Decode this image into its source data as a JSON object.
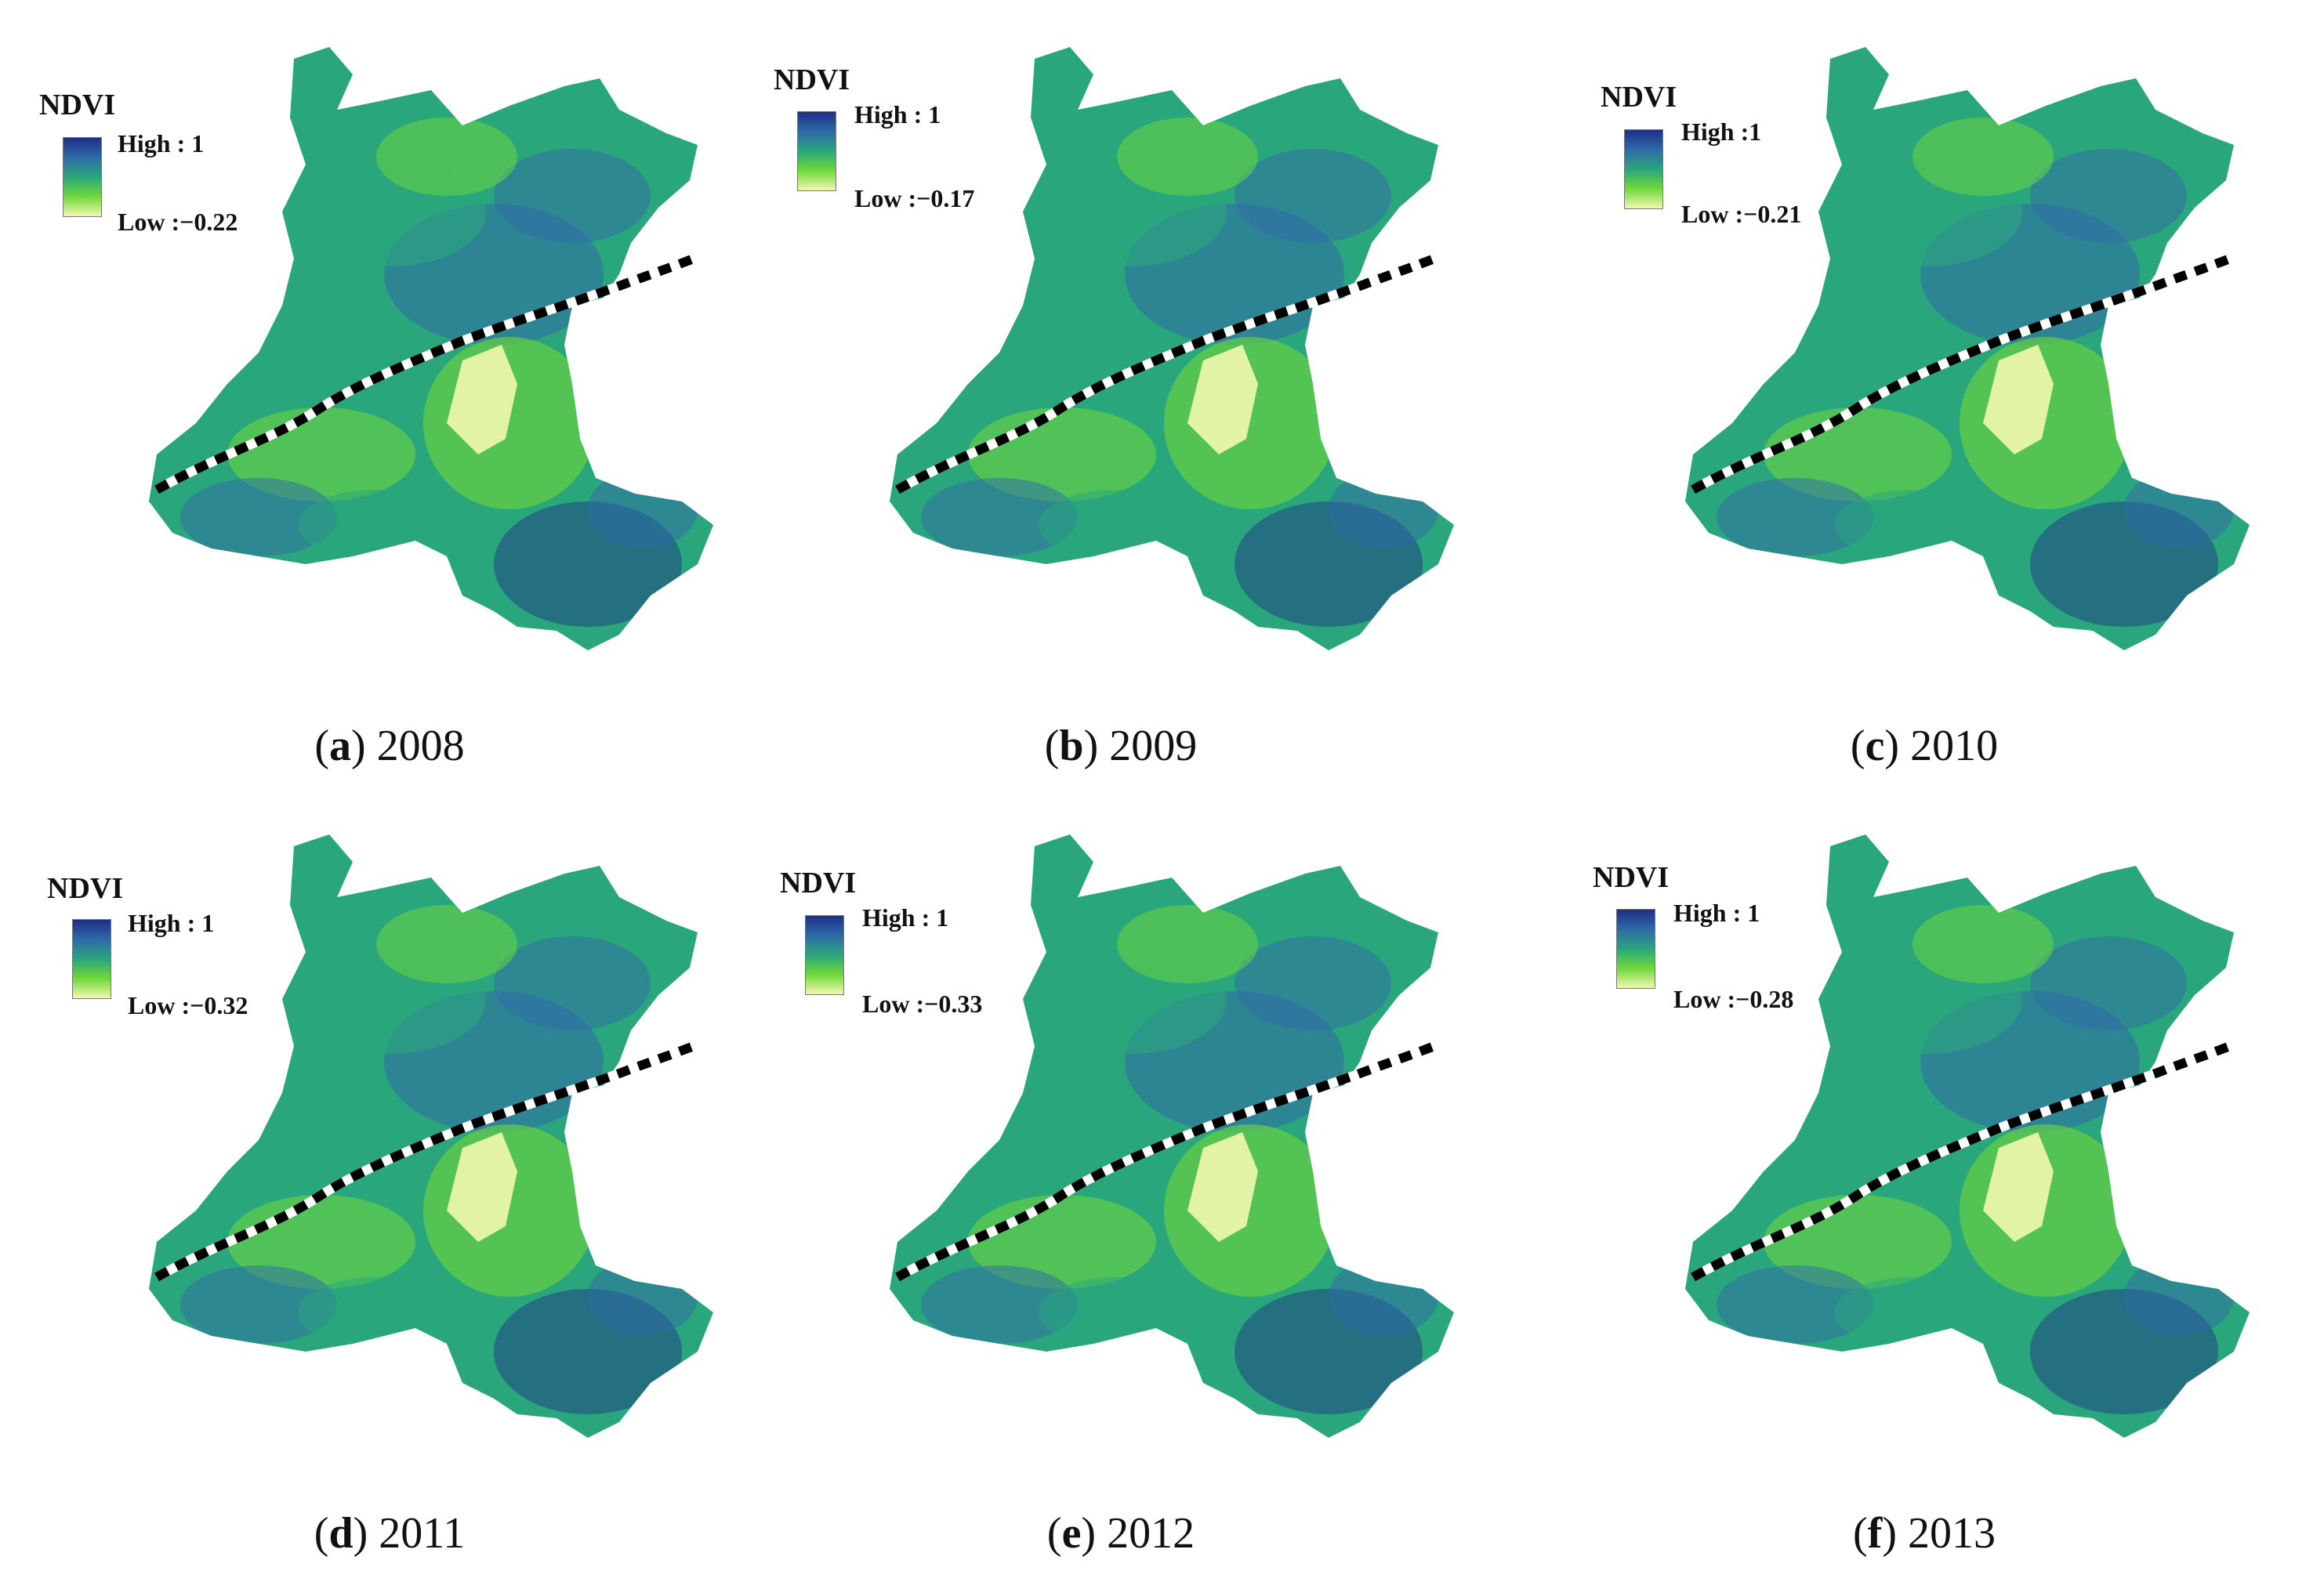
{
  "panels": [
    {
      "letter": "a",
      "year": "2008",
      "legend_title": "NDVI",
      "high": "High : 1",
      "low": "Low :−0.22"
    },
    {
      "letter": "b",
      "year": "2009",
      "legend_title": "NDVI",
      "high": "High : 1",
      "low": "Low :−0.17"
    },
    {
      "letter": "c",
      "year": "2010",
      "legend_title": "NDVI",
      "high": "High :1",
      "low": "Low :−0.21"
    },
    {
      "letter": "d",
      "year": "2011",
      "legend_title": "NDVI",
      "high": "High : 1",
      "low": "Low :−0.32"
    },
    {
      "letter": "e",
      "year": "2012",
      "legend_title": "NDVI",
      "high": "High : 1",
      "low": "Low :−0.33"
    },
    {
      "letter": "f",
      "year": "2013",
      "legend_title": "NDVI",
      "high": "High : 1",
      "low": "Low :−0.28"
    }
  ],
  "colors": {
    "high": "#1d2f86",
    "mid_blue": "#2f6aa8",
    "mid": "#2aa67c",
    "green": "#6fd83a",
    "low": "#f2f7b0",
    "boundary_dash": "#000000",
    "boundary_gap": "#ffffff"
  }
}
